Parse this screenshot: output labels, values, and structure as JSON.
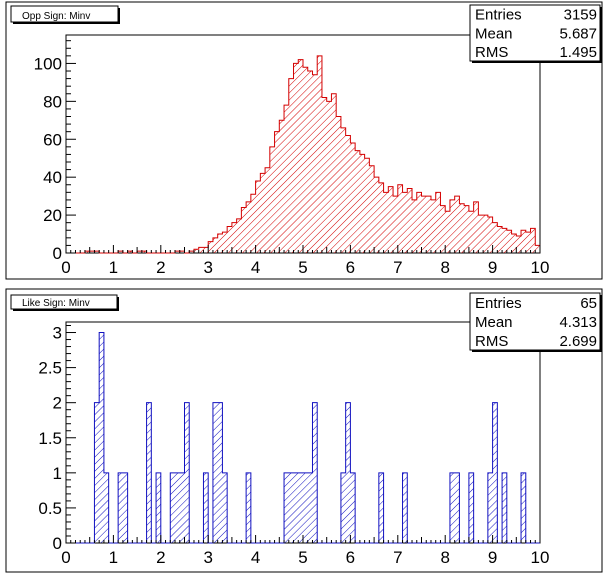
{
  "chart_data": [
    {
      "type": "histogram",
      "title": "Opp Sign: Minv",
      "stats": [
        {
          "label": "Entries",
          "value": "3159"
        },
        {
          "label": "Mean",
          "value": "5.687"
        },
        {
          "label": "RMS",
          "value": "1.495"
        }
      ],
      "xlim": [
        0,
        10
      ],
      "ylim": [
        0,
        115
      ],
      "xticks": [
        "0",
        "1",
        "2",
        "3",
        "4",
        "5",
        "6",
        "7",
        "8",
        "9",
        "10"
      ],
      "yticks": [
        {
          "v": 0,
          "t": "0"
        },
        {
          "v": 20,
          "t": "20"
        },
        {
          "v": 40,
          "t": "40"
        },
        {
          "v": 60,
          "t": "60"
        },
        {
          "v": 80,
          "t": "80"
        },
        {
          "v": 100,
          "t": "100"
        }
      ],
      "bin_width": 0.1,
      "line_color": "#d40000",
      "fill_pattern": "diagonal-hatch",
      "values": [
        0,
        0,
        0,
        0,
        1,
        1,
        1,
        0,
        0,
        0,
        0,
        1,
        0,
        1,
        0,
        1,
        1,
        0,
        0,
        0,
        0,
        0,
        0,
        1,
        1,
        0,
        1,
        2,
        3,
        3,
        6,
        8,
        10,
        11,
        14,
        16,
        18,
        24,
        27,
        31,
        38,
        42,
        45,
        56,
        64,
        70,
        78,
        92,
        100,
        102,
        98,
        96,
        94,
        104,
        82,
        80,
        84,
        72,
        66,
        62,
        58,
        54,
        52,
        50,
        46,
        40,
        37,
        32,
        35,
        30,
        36,
        32,
        34,
        28,
        32,
        30,
        30,
        28,
        32,
        25,
        22,
        28,
        30,
        26,
        25,
        22,
        27,
        20,
        20,
        19,
        16,
        14,
        13,
        12,
        10,
        9,
        12,
        11,
        13,
        4
      ],
      "values_note_bins": "100 bins of width 0.1 from 0 to 10"
    },
    {
      "type": "histogram",
      "title": "Like Sign: Minv",
      "stats": [
        {
          "label": "Entries",
          "value": "65"
        },
        {
          "label": "Mean",
          "value": "4.313"
        },
        {
          "label": "RMS",
          "value": "2.699"
        }
      ],
      "xlim": [
        0,
        10
      ],
      "ylim": [
        0,
        3.15
      ],
      "xticks": [
        "0",
        "1",
        "2",
        "3",
        "4",
        "5",
        "6",
        "7",
        "8",
        "9",
        "10"
      ],
      "yticks": [
        {
          "v": 0,
          "t": "0"
        },
        {
          "v": 0.5,
          "t": "0.5"
        },
        {
          "v": 1,
          "t": "1"
        },
        {
          "v": 1.5,
          "t": "1.5"
        },
        {
          "v": 2,
          "t": "2"
        },
        {
          "v": 2.5,
          "t": "2.5"
        },
        {
          "v": 3,
          "t": "3"
        }
      ],
      "bin_width": 0.1,
      "line_color": "#1010c0",
      "fill_pattern": "diagonal-hatch",
      "values": [
        0,
        0,
        0,
        0,
        0,
        0,
        2,
        3,
        1,
        0,
        0,
        1,
        1,
        0,
        0,
        0,
        0,
        2,
        0,
        1,
        0,
        0,
        1,
        1,
        1,
        2,
        0,
        0,
        0,
        1,
        0,
        2,
        2,
        1,
        0,
        0,
        0,
        0,
        1,
        0,
        0,
        0,
        0,
        0,
        0,
        0,
        1,
        1,
        1,
        1,
        1,
        1,
        2,
        0,
        0,
        0,
        0,
        0,
        1,
        2,
        1,
        0,
        0,
        0,
        0,
        0,
        1,
        0,
        0,
        0,
        0,
        1,
        0,
        0,
        0,
        0,
        0,
        0,
        0,
        0,
        0,
        1,
        1,
        0,
        0,
        1,
        0,
        0,
        0,
        1,
        2,
        0,
        1,
        0,
        0,
        0,
        1,
        0,
        0,
        0
      ]
    }
  ]
}
